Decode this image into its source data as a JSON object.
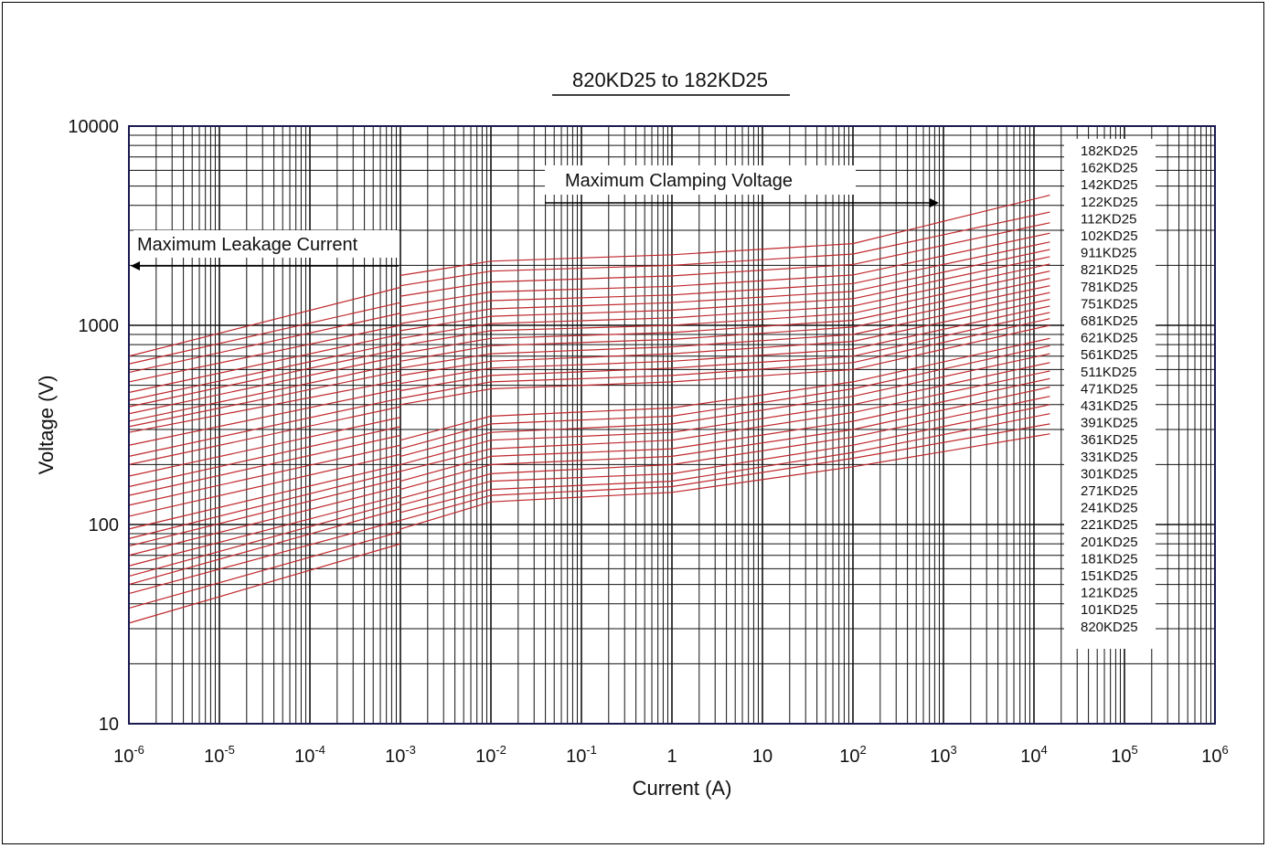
{
  "chart_data": {
    "type": "line",
    "title": "820KD25 to 182KD25",
    "xlabel": "Current (A)",
    "ylabel": "Voltage (V)",
    "x_scale": "log",
    "y_scale": "log",
    "xlim": [
      1e-06,
      1000000
    ],
    "ylim": [
      10,
      10000
    ],
    "grid": true,
    "x_ticks": [
      {
        "base": "10",
        "exp": "-6"
      },
      {
        "base": "10",
        "exp": "-5"
      },
      {
        "base": "10",
        "exp": "-4"
      },
      {
        "base": "10",
        "exp": "-3"
      },
      {
        "base": "10",
        "exp": "-2"
      },
      {
        "base": "10",
        "exp": "-1"
      },
      {
        "base": "1",
        "exp": ""
      },
      {
        "base": "10",
        "exp": ""
      },
      {
        "base": "10",
        "exp": "2"
      },
      {
        "base": "10",
        "exp": "3"
      },
      {
        "base": "10",
        "exp": "4"
      },
      {
        "base": "10",
        "exp": "5"
      },
      {
        "base": "10",
        "exp": "6"
      }
    ],
    "y_ticks": [
      "10",
      "100",
      "1000",
      "10000"
    ],
    "annotations": {
      "leakage": "Maximum Leakage Current",
      "clamping": "Maximum Clamping Voltage"
    },
    "legend_position": "right",
    "legend": [
      "182KD25",
      "162KD25",
      "142KD25",
      "122KD25",
      "112KD25",
      "102KD25",
      "911KD25",
      "821KD25",
      "781KD25",
      "751KD25",
      "681KD25",
      "621KD25",
      "561KD25",
      "511KD25",
      "471KD25",
      "431KD25",
      "391KD25",
      "361KD25",
      "331KD25",
      "301KD25",
      "271KD25",
      "241KD25",
      "221KD25",
      "201KD25",
      "181KD25",
      "151KD25",
      "121KD25",
      "101KD25",
      "820KD25"
    ],
    "line_color": "#c0282d",
    "leakage_series": [
      {
        "v_start": 32,
        "v_end": 80
      },
      {
        "v_start": 38,
        "v_end": 92
      },
      {
        "v_start": 45,
        "v_end": 105
      },
      {
        "v_start": 50,
        "v_end": 120
      },
      {
        "v_start": 55,
        "v_end": 130
      },
      {
        "v_start": 62,
        "v_end": 140
      },
      {
        "v_start": 70,
        "v_end": 155
      },
      {
        "v_start": 78,
        "v_end": 170
      },
      {
        "v_start": 85,
        "v_end": 185
      },
      {
        "v_start": 95,
        "v_end": 200
      },
      {
        "v_start": 110,
        "v_end": 225
      },
      {
        "v_start": 125,
        "v_end": 250
      },
      {
        "v_start": 140,
        "v_end": 280
      },
      {
        "v_start": 155,
        "v_end": 310
      },
      {
        "v_start": 175,
        "v_end": 345
      },
      {
        "v_start": 200,
        "v_end": 390
      },
      {
        "v_start": 220,
        "v_end": 430
      },
      {
        "v_start": 250,
        "v_end": 480
      },
      {
        "v_start": 290,
        "v_end": 530
      },
      {
        "v_start": 310,
        "v_end": 590
      },
      {
        "v_start": 330,
        "v_end": 640
      },
      {
        "v_start": 360,
        "v_end": 700
      },
      {
        "v_start": 390,
        "v_end": 760
      },
      {
        "v_start": 420,
        "v_end": 820
      },
      {
        "v_start": 460,
        "v_end": 900
      },
      {
        "v_start": 520,
        "v_end": 1000
      },
      {
        "v_start": 580,
        "v_end": 1150
      },
      {
        "v_start": 640,
        "v_end": 1300
      },
      {
        "v_start": 700,
        "v_end": 1550
      }
    ],
    "clamping_series": [
      {
        "v_0": 95,
        "v_1": 130,
        "v_2": 145,
        "v_3": 195,
        "v_4": 285
      },
      {
        "v_0": 105,
        "v_1": 140,
        "v_2": 155,
        "v_3": 215,
        "v_4": 320
      },
      {
        "v_0": 115,
        "v_1": 150,
        "v_2": 165,
        "v_3": 230,
        "v_4": 360
      },
      {
        "v_0": 125,
        "v_1": 165,
        "v_2": 180,
        "v_3": 250,
        "v_4": 400
      },
      {
        "v_0": 135,
        "v_1": 180,
        "v_2": 200,
        "v_3": 275,
        "v_4": 440
      },
      {
        "v_0": 150,
        "v_1": 200,
        "v_2": 220,
        "v_3": 300,
        "v_4": 490
      },
      {
        "v_0": 165,
        "v_1": 220,
        "v_2": 240,
        "v_3": 330,
        "v_4": 540
      },
      {
        "v_0": 185,
        "v_1": 240,
        "v_2": 265,
        "v_3": 365,
        "v_4": 590
      },
      {
        "v_0": 200,
        "v_1": 265,
        "v_2": 290,
        "v_3": 400,
        "v_4": 650
      },
      {
        "v_0": 220,
        "v_1": 290,
        "v_2": 320,
        "v_3": 440,
        "v_4": 720
      },
      {
        "v_0": 240,
        "v_1": 320,
        "v_2": 350,
        "v_3": 480,
        "v_4": 790
      },
      {
        "v_0": 265,
        "v_1": 350,
        "v_2": 385,
        "v_3": 520,
        "v_4": 860
      },
      {
        "v_0": 400,
        "v_1": 480,
        "v_2": 520,
        "v_3": 600,
        "v_4": 1000
      },
      {
        "v_0": 430,
        "v_1": 520,
        "v_2": 560,
        "v_3": 650,
        "v_4": 1080
      },
      {
        "v_0": 470,
        "v_1": 560,
        "v_2": 610,
        "v_3": 700,
        "v_4": 1160
      },
      {
        "v_0": 510,
        "v_1": 610,
        "v_2": 660,
        "v_3": 760,
        "v_4": 1250
      },
      {
        "v_0": 560,
        "v_1": 660,
        "v_2": 720,
        "v_3": 830,
        "v_4": 1350
      },
      {
        "v_0": 610,
        "v_1": 720,
        "v_2": 780,
        "v_3": 900,
        "v_4": 1460
      },
      {
        "v_0": 660,
        "v_1": 790,
        "v_2": 850,
        "v_3": 980,
        "v_4": 1580
      },
      {
        "v_0": 720,
        "v_1": 860,
        "v_2": 920,
        "v_3": 1060,
        "v_4": 1720
      },
      {
        "v_0": 790,
        "v_1": 940,
        "v_2": 1000,
        "v_3": 1150,
        "v_4": 1870
      },
      {
        "v_0": 860,
        "v_1": 1020,
        "v_2": 1090,
        "v_3": 1250,
        "v_4": 2030
      },
      {
        "v_0": 940,
        "v_1": 1110,
        "v_2": 1190,
        "v_3": 1360,
        "v_4": 2210
      },
      {
        "v_0": 1020,
        "v_1": 1210,
        "v_2": 1300,
        "v_3": 1480,
        "v_4": 2400
      },
      {
        "v_0": 1120,
        "v_1": 1330,
        "v_2": 1420,
        "v_3": 1620,
        "v_4": 2620
      },
      {
        "v_0": 1240,
        "v_1": 1470,
        "v_2": 1570,
        "v_3": 1790,
        "v_4": 2900
      },
      {
        "v_0": 1400,
        "v_1": 1650,
        "v_2": 1770,
        "v_3": 2020,
        "v_4": 3270
      },
      {
        "v_0": 1580,
        "v_1": 1870,
        "v_2": 2000,
        "v_3": 2280,
        "v_4": 3700
      },
      {
        "v_0": 1780,
        "v_1": 2100,
        "v_2": 2260,
        "v_3": 2570,
        "v_4": 4500
      }
    ],
    "clamping_x": [
      0.001,
      0.01,
      1,
      100,
      15000
    ],
    "leakage_x": [
      1e-06,
      0.001
    ]
  }
}
